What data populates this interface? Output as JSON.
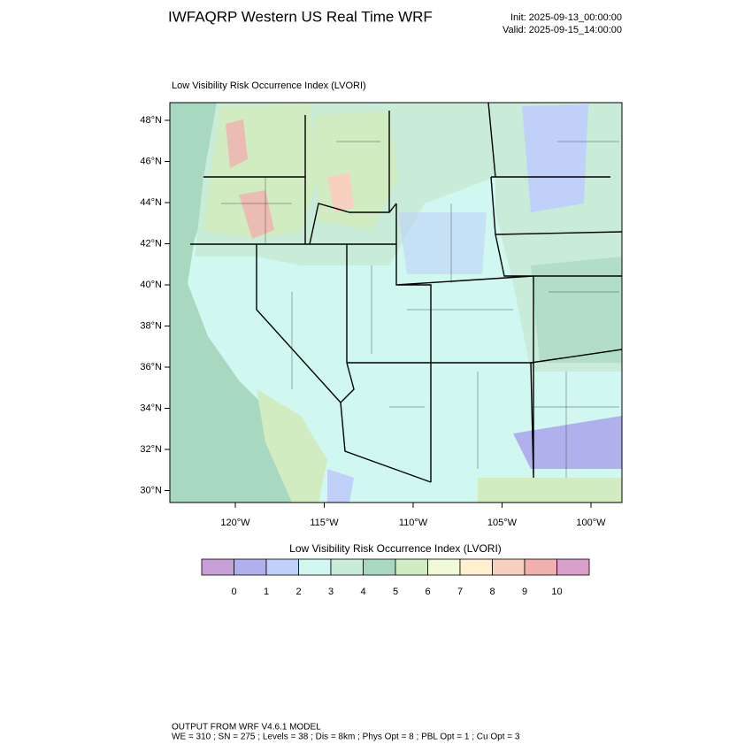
{
  "header": {
    "title": "IWFAQRP Western US Real Time WRF",
    "init": "Init: 2025-09-13_00:00:00",
    "valid": "Valid: 2025-09-15_14:00:00"
  },
  "map": {
    "title": "Low Visibility Risk Occurrence Index   (LVORI)",
    "lat_ticks": [
      "48°N",
      "46°N",
      "44°N",
      "42°N",
      "40°N",
      "38°N",
      "36°N",
      "34°N",
      "32°N",
      "30°N"
    ],
    "lon_ticks": [
      "120°W",
      "115°W",
      "110°W",
      "105°W",
      "100°W"
    ]
  },
  "colorbar": {
    "title": "Low Visibility Risk Occurrence Index  (LVORI)",
    "colors": [
      "#c8a0d8",
      "#b0b0ec",
      "#c0d0f8",
      "#d0f8f0",
      "#c8ecd8",
      "#a8d8c0",
      "#d0ecc0",
      "#f0fad8",
      "#fff0d0",
      "#f8d0c0",
      "#f0b0b0",
      "#d8a0c8"
    ],
    "labels": [
      0,
      1,
      2,
      3,
      4,
      5,
      6,
      7,
      8,
      9,
      10
    ]
  },
  "footer": {
    "line1": "OUTPUT FROM WRF V4.6.1 MODEL",
    "line2": "WE = 310 ; SN = 275 ; Levels = 38 ; Dis = 8km ; Phys Opt = 8 ; PBL Opt = 1 ; Cu Opt = 3"
  }
}
